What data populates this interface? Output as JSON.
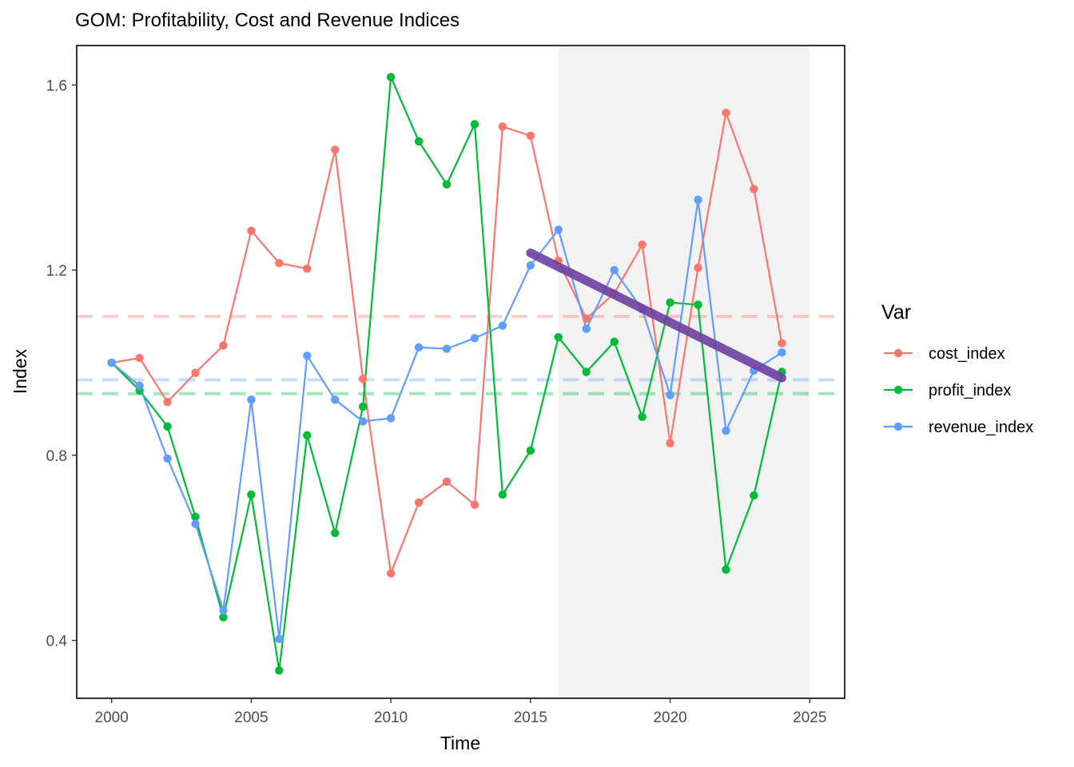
{
  "chart_data": {
    "type": "line",
    "title": "GOM: Profitability, Cost and Revenue Indices",
    "xlabel": "Time",
    "ylabel": "Index",
    "xlim": [
      1998.75,
      2026.25
    ],
    "ylim": [
      0.275,
      1.685
    ],
    "x_ticks": [
      "2000",
      "2005",
      "2010",
      "2015",
      "2020",
      "2025"
    ],
    "y_ticks": [
      "0.4",
      "0.8",
      "1.2",
      "1.6"
    ],
    "grid": false,
    "legend": {
      "title": "Var",
      "position": "right",
      "entries": [
        "cost_index",
        "profit_index",
        "revenue_index"
      ]
    },
    "shaded_region": {
      "x_start": 2016,
      "x_end": 2025,
      "color": "#f2f2f2"
    },
    "x": [
      2000,
      2001,
      2002,
      2003,
      2004,
      2005,
      2006,
      2007,
      2008,
      2009,
      2010,
      2011,
      2012,
      2013,
      2014,
      2015,
      2016,
      2017,
      2018,
      2019,
      2020,
      2021,
      2022,
      2023,
      2024
    ],
    "series": [
      {
        "name": "cost_index",
        "color": "#F8766D",
        "mean": 1.1,
        "values": [
          1.0,
          1.01,
          0.915,
          0.978,
          1.037,
          1.285,
          1.215,
          1.203,
          1.46,
          0.965,
          0.545,
          0.698,
          0.743,
          0.693,
          1.51,
          1.49,
          1.22,
          1.095,
          1.15,
          1.255,
          0.826,
          1.205,
          1.54,
          1.375,
          1.042
        ]
      },
      {
        "name": "profit_index",
        "color": "#00BA38",
        "mean": 0.933,
        "values": [
          1.0,
          0.94,
          0.862,
          0.667,
          0.45,
          0.715,
          0.335,
          0.843,
          0.632,
          0.905,
          1.617,
          1.478,
          1.385,
          1.515,
          0.715,
          0.81,
          1.055,
          0.98,
          1.045,
          0.883,
          1.13,
          1.125,
          0.553,
          0.713,
          0.98
        ]
      },
      {
        "name": "revenue_index",
        "color": "#619CFF",
        "mean": 0.963,
        "values": [
          1.0,
          0.95,
          0.793,
          0.652,
          0.465,
          0.92,
          0.403,
          1.015,
          0.92,
          0.873,
          0.88,
          1.033,
          1.03,
          1.053,
          1.08,
          1.21,
          1.287,
          1.073,
          1.2,
          1.115,
          0.93,
          1.352,
          0.853,
          0.983,
          1.022
        ]
      }
    ],
    "trend_line": {
      "color": "#6B3FA0",
      "x": [
        2015,
        2024
      ],
      "values": [
        1.237,
        0.967
      ]
    }
  }
}
